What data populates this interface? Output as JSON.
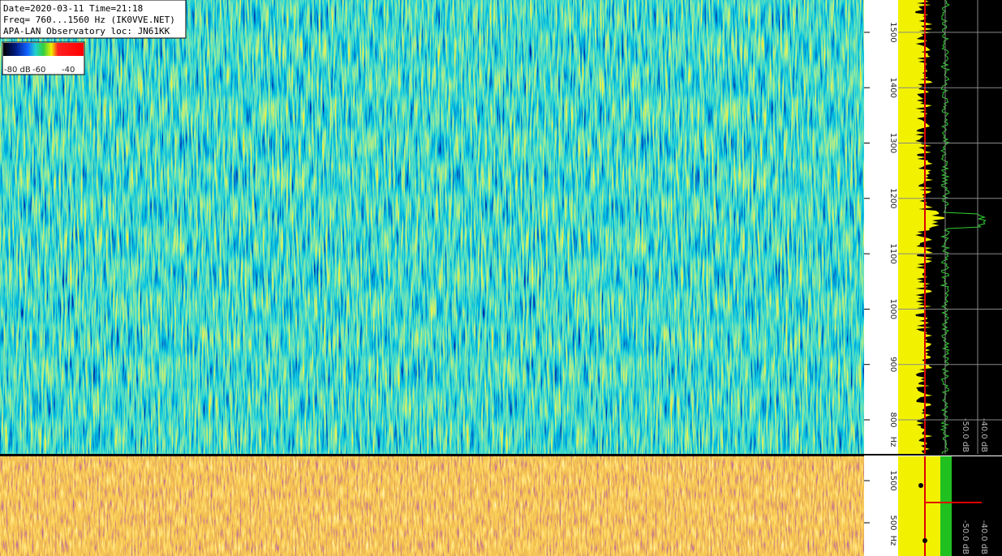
{
  "header": {
    "lines": [
      "Date=2020-03-11 Time=21:18",
      "Freq= 760...1560 Hz (IK0VVE.NET)",
      "APA-LAN Observatory loc: JN61KK"
    ]
  },
  "colorbar": {
    "labels": [
      "-80 dB",
      "-60",
      "-40"
    ]
  },
  "waterfall": {
    "ticks": [
      800,
      900,
      1000,
      1100,
      1200,
      1300,
      1400,
      1500
    ],
    "unit": "Hz",
    "spectrum_labels": [
      "-50.0 dB",
      "-40.0 dB"
    ]
  },
  "lower_waterfall": {
    "ticks": [
      500,
      1500
    ],
    "unit": "Hz",
    "spectrum_labels": [
      "-50.0 dB",
      "-40.0 dB"
    ]
  }
}
